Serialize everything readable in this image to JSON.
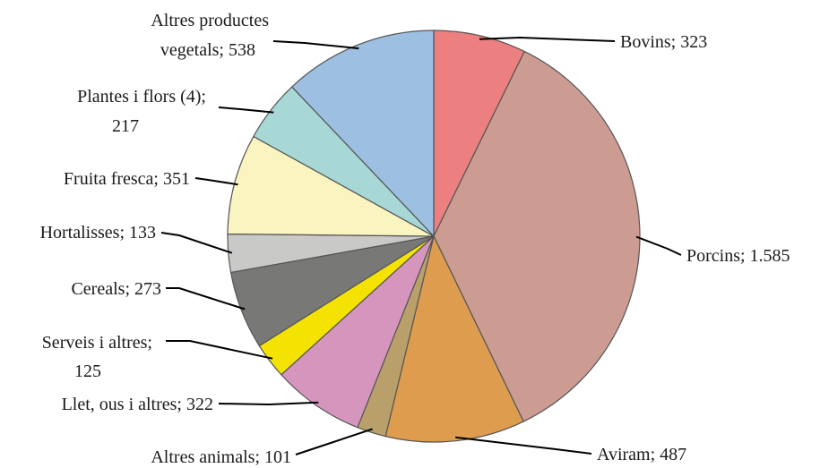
{
  "chart_data": {
    "type": "pie",
    "start_angle_deg": 0,
    "direction": "clockwise",
    "slices": [
      {
        "label": "Bovins; 323",
        "value": 323,
        "color": "#ec7f80"
      },
      {
        "label": "Porcins; 1.585",
        "value": 1585,
        "color": "#cc9c92"
      },
      {
        "label": "Aviram; 487",
        "value": 487,
        "color": "#de9c4f"
      },
      {
        "label": "Altres animals; 101",
        "value": 101,
        "color": "#b9a06a"
      },
      {
        "label": "Llet, ous i altres; 322",
        "value": 322,
        "color": "#d595bd"
      },
      {
        "label": "Serveis i altres;|125",
        "value": 125,
        "color": "#f4e302"
      },
      {
        "label": "Cereals; 273",
        "value": 273,
        "color": "#787976"
      },
      {
        "label": "Hortalisses; 133",
        "value": 133,
        "color": "#c9c9c8"
      },
      {
        "label": "Fruita fresca; 351",
        "value": 351,
        "color": "#faf4c0"
      },
      {
        "label": "Plantes i flors (4);|217",
        "value": 217,
        "color": "#a7d8d6"
      },
      {
        "label": "Altres productes|vegetals; 538",
        "value": 538,
        "color": "#9dc0e2"
      }
    ]
  }
}
